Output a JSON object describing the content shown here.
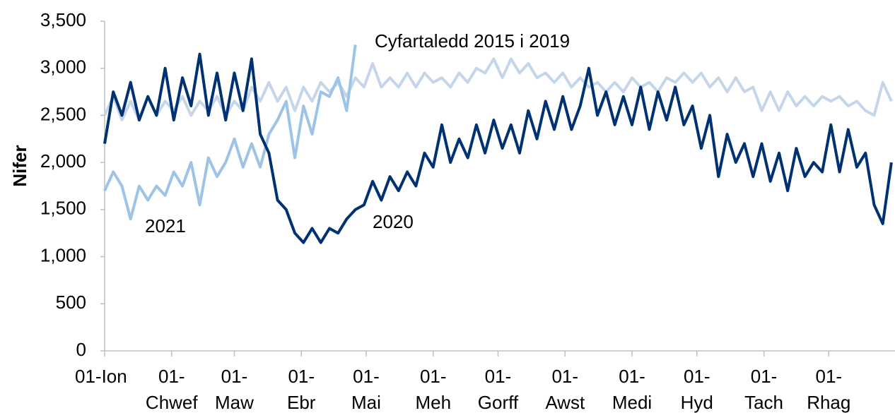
{
  "chart_data": {
    "type": "line",
    "y_label": "Nifer",
    "annotations": [
      "Cyfartaledd 2015 i 2019",
      "2021",
      "2020"
    ],
    "xlim": [
      0,
      365
    ],
    "xticks": [
      {
        "value": 0,
        "label": "01-Ion"
      },
      {
        "value": 31,
        "label": "01-Chwef"
      },
      {
        "value": 60,
        "label": "01-Maw"
      },
      {
        "value": 91,
        "label": "01-Ebr"
      },
      {
        "value": 121,
        "label": "01-Mai"
      },
      {
        "value": 152,
        "label": "01-Meh"
      },
      {
        "value": 182,
        "label": "01-Gorff"
      },
      {
        "value": 213,
        "label": "01-Awst"
      },
      {
        "value": 244,
        "label": "01-Medi"
      },
      {
        "value": 274,
        "label": "01-Hyd"
      },
      {
        "value": 305,
        "label": "01-Tach"
      },
      {
        "value": 335,
        "label": "01-Rhag"
      }
    ],
    "ylim": [
      0,
      3500
    ],
    "yticks": [
      0,
      500,
      {
        "value": 1000,
        "label": "1,000"
      },
      {
        "value": 1500,
        "label": "1,500"
      },
      {
        "value": 2000,
        "label": "2,000"
      },
      {
        "value": 2500,
        "label": "2,500"
      },
      {
        "value": 3000,
        "label": "3,000"
      },
      {
        "value": 3500,
        "label": "3,500"
      }
    ],
    "grid": false,
    "x": [
      0,
      4,
      8,
      12,
      16,
      20,
      24,
      28,
      32,
      36,
      40,
      44,
      48,
      52,
      56,
      60,
      64,
      68,
      72,
      76,
      80,
      84,
      88,
      92,
      96,
      100,
      104,
      108,
      112,
      116,
      120,
      124,
      128,
      132,
      136,
      140,
      144,
      148,
      152,
      156,
      160,
      164,
      168,
      172,
      176,
      180,
      184,
      188,
      192,
      196,
      200,
      204,
      208,
      212,
      216,
      220,
      224,
      228,
      232,
      236,
      240,
      244,
      248,
      252,
      256,
      260,
      264,
      268,
      272,
      276,
      280,
      284,
      288,
      292,
      296,
      300,
      304,
      308,
      312,
      316,
      320,
      324,
      328,
      332,
      336,
      340,
      344,
      348,
      352,
      356,
      360,
      364
    ],
    "series": [
      {
        "color": "#c5d6ea",
        "values": [
          2500,
          2700,
          2450,
          2650,
          2450,
          2700,
          2500,
          2650,
          2550,
          2700,
          2500,
          2650,
          2550,
          2700,
          2500,
          2650,
          2550,
          2800,
          2650,
          2850,
          2650,
          2800,
          2550,
          2800,
          2650,
          2850,
          2750,
          2850,
          2700,
          2900,
          2800,
          3050,
          2800,
          2900,
          2800,
          2950,
          2800,
          2950,
          2850,
          2900,
          2800,
          2950,
          2850,
          3000,
          2950,
          3100,
          2900,
          3100,
          2950,
          3050,
          2900,
          2950,
          2850,
          2950,
          2800,
          2900,
          2800,
          2850,
          2750,
          2850,
          2750,
          2900,
          2800,
          2850,
          2750,
          2900,
          2850,
          2950,
          2850,
          2950,
          2800,
          2900,
          2750,
          2900,
          2750,
          2800,
          2550,
          2750,
          2550,
          2750,
          2600,
          2700,
          2600,
          2700,
          2650,
          2700,
          2600,
          2650,
          2550,
          2500,
          2850,
          2650
        ]
      },
      {
        "color": "#9dc3e6",
        "values": [
          1700,
          1900,
          1750,
          1400,
          1750,
          1600,
          1750,
          1650,
          1900,
          1750,
          2000,
          1550,
          2050,
          1850,
          2000,
          2250,
          1950,
          2200,
          1950,
          2300,
          2450,
          2650,
          2050,
          2600,
          2300,
          2750,
          2700,
          2900,
          2550,
          3250,
          null,
          null,
          null,
          null,
          null,
          null,
          null,
          null,
          null,
          null,
          null,
          null,
          null,
          null,
          null,
          null,
          null,
          null,
          null,
          null,
          null,
          null,
          null,
          null,
          null,
          null,
          null,
          null,
          null,
          null,
          null,
          null,
          null,
          null,
          null,
          null,
          null,
          null,
          null,
          null,
          null,
          null,
          null,
          null,
          null,
          null,
          null,
          null,
          null,
          null,
          null,
          null,
          null,
          null,
          null,
          null,
          null,
          null,
          null,
          null,
          null,
          null
        ]
      },
      {
        "color": "#003171",
        "values": [
          2200,
          2750,
          2500,
          2850,
          2450,
          2700,
          2500,
          3000,
          2450,
          2900,
          2600,
          3150,
          2500,
          2950,
          2450,
          2950,
          2550,
          3100,
          2300,
          2100,
          1600,
          1500,
          1250,
          1150,
          1300,
          1150,
          1300,
          1250,
          1400,
          1500,
          1550,
          1800,
          1600,
          1850,
          1700,
          1900,
          1750,
          2100,
          1950,
          2400,
          2000,
          2250,
          2050,
          2400,
          2100,
          2450,
          2150,
          2400,
          2100,
          2550,
          2250,
          2650,
          2350,
          2700,
          2350,
          2600,
          3000,
          2500,
          2750,
          2400,
          2700,
          2400,
          2800,
          2350,
          2750,
          2450,
          2800,
          2400,
          2600,
          2150,
          2500,
          1850,
          2300,
          2000,
          2200,
          1850,
          2200,
          1800,
          2100,
          1700,
          2150,
          1850,
          2000,
          1900,
          2400,
          1900,
          2350,
          1950,
          2100,
          1550,
          1350,
          2000
        ]
      }
    ]
  }
}
